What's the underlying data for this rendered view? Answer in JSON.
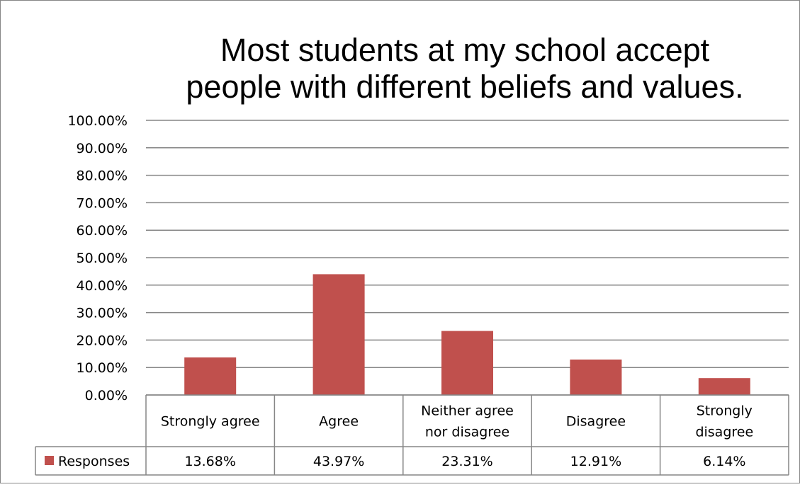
{
  "chart_data": {
    "type": "bar",
    "title_lines": [
      "Most students at my school accept",
      "people with different beliefs and values."
    ],
    "categories": [
      [
        "Strongly agree"
      ],
      [
        "Agree"
      ],
      [
        "Neither agree",
        "nor disagree"
      ],
      [
        "Disagree"
      ],
      [
        "Strongly",
        "disagree"
      ]
    ],
    "series": [
      {
        "name": "Responses",
        "values": [
          13.68,
          43.97,
          23.31,
          12.91,
          6.14
        ],
        "value_labels": [
          "13.68%",
          "43.97%",
          "23.31%",
          "12.91%",
          "6.14%"
        ],
        "color": "#c0504d"
      }
    ],
    "y_ticks": [
      "0.00%",
      "10.00%",
      "20.00%",
      "30.00%",
      "40.00%",
      "50.00%",
      "60.00%",
      "70.00%",
      "80.00%",
      "90.00%",
      "100.00%"
    ],
    "ylim": [
      0,
      100
    ],
    "grid": true,
    "legend": "data-table"
  },
  "colors": {
    "bar": "#c0504d",
    "grid": "#868686",
    "border": "#868686"
  }
}
